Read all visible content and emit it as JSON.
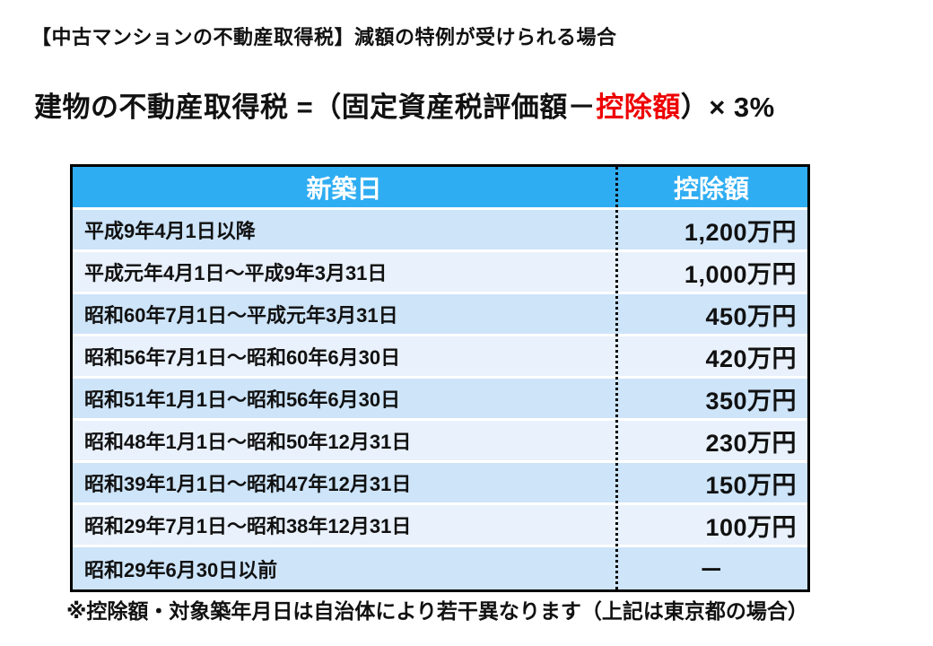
{
  "page": {
    "title": "【中古マンションの不動産取得税】減額の特例が受けられる場合"
  },
  "formula": {
    "prefix": "建物の不動産取得税 =（固定資産税評価額－",
    "highlight": "控除額",
    "suffix": "）× 3%",
    "highlight_color": "#ee0000"
  },
  "table": {
    "headers": {
      "date": "新築日",
      "deduction": "控除額"
    },
    "header_bg": "#2fadf2",
    "header_text_color": "#ffffff",
    "row_colors_alternating": [
      "#cde4f9",
      "#e9f1fc"
    ],
    "border_color": "#000000",
    "rows": [
      {
        "date": "平成9年4月1日以降",
        "deduction": "1,200万円"
      },
      {
        "date": "平成元年4月1日～平成9年3月31日",
        "deduction": "1,000万円"
      },
      {
        "date": "昭和60年7月1日～平成元年3月31日",
        "deduction": "450万円"
      },
      {
        "date": "昭和56年7月1日～昭和60年6月30日",
        "deduction": "420万円"
      },
      {
        "date": "昭和51年1月1日～昭和56年6月30日",
        "deduction": "350万円"
      },
      {
        "date": "昭和48年1月1日～昭和50年12月31日",
        "deduction": "230万円"
      },
      {
        "date": "昭和39年1月1日～昭和47年12月31日",
        "deduction": "150万円"
      },
      {
        "date": "昭和29年7月1日～昭和38年12月31日",
        "deduction": "100万円"
      },
      {
        "date": "昭和29年6月30日以前",
        "deduction": "－"
      }
    ]
  },
  "footer": {
    "note": "※控除額・対象築年月日は自治体により若干異なります（上記は東京都の場合）"
  }
}
